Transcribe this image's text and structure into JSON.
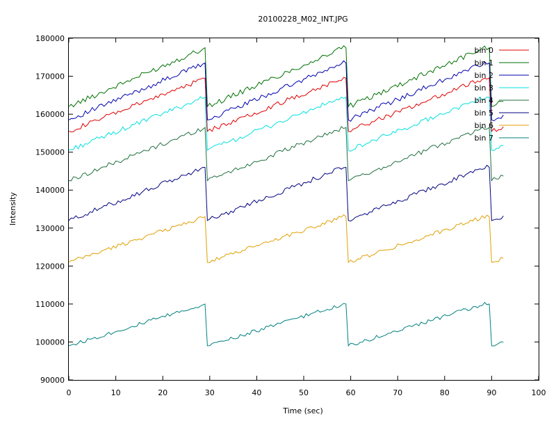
{
  "chart_data": {
    "type": "line",
    "title": "20100228_M02_INT.JPG",
    "xlabel": "Time (sec)",
    "ylabel": "Intensity",
    "xlim": [
      0,
      100
    ],
    "ylim": [
      90000,
      180000
    ],
    "x_ticks": [
      0,
      10,
      20,
      30,
      40,
      50,
      60,
      70,
      80,
      90,
      100
    ],
    "y_ticks": [
      90000,
      100000,
      110000,
      120000,
      130000,
      140000,
      150000,
      160000,
      170000,
      180000
    ],
    "grid": false,
    "legend_position": "top-right",
    "series": [
      {
        "name": "bin 0",
        "color": "#e00000",
        "cycle_start": 155500,
        "cycle_end": 169500
      },
      {
        "name": "bin 1",
        "color": "#007000",
        "cycle_start": 162000,
        "cycle_end": 177500
      },
      {
        "name": "bin 2",
        "color": "#0000b0",
        "cycle_start": 158500,
        "cycle_end": 173500
      },
      {
        "name": "bin 3",
        "color": "#00e0e0",
        "cycle_start": 150500,
        "cycle_end": 164500
      },
      {
        "name": "bin 4",
        "color": "#207040",
        "cycle_start": 142500,
        "cycle_end": 156500
      },
      {
        "name": "bin 5",
        "color": "#000080",
        "cycle_start": 132000,
        "cycle_end": 146000
      },
      {
        "name": "bin 6",
        "color": "#e0a000",
        "cycle_start": 121000,
        "cycle_end": 133000
      },
      {
        "name": "bin 7",
        "color": "#008080",
        "cycle_start": 99000,
        "cycle_end": 110000
      }
    ],
    "cycles": [
      {
        "x_start": 0,
        "x_end": 29
      },
      {
        "x_start": 29.5,
        "x_end": 59
      },
      {
        "x_start": 59.5,
        "x_end": 89.5
      },
      {
        "x_start": 90,
        "x_end": 92.5
      }
    ]
  }
}
